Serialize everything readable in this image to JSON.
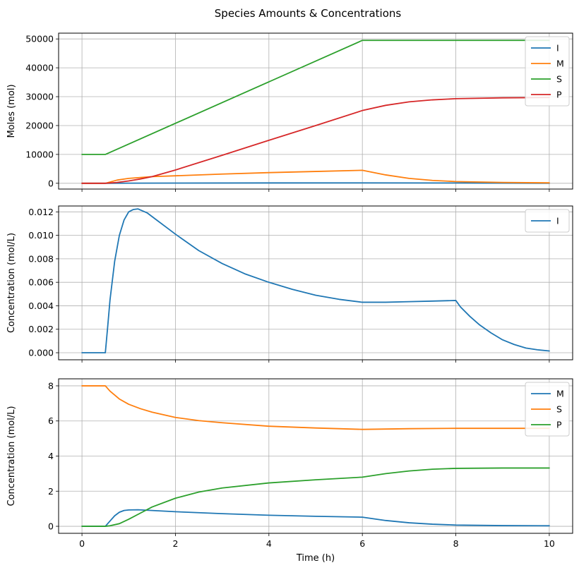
{
  "figure_title": "Species Amounts & Concentrations",
  "chart_data": [
    {
      "type": "line",
      "title": "",
      "xlabel": "",
      "ylabel": "Moles (mol)",
      "xlim": [
        -0.5,
        10.5
      ],
      "ylim": [
        -2000,
        52000
      ],
      "xticks": [
        0,
        2,
        4,
        6,
        8,
        10
      ],
      "xtick_labels": [],
      "yticks": [
        0,
        10000,
        20000,
        30000,
        40000,
        50000
      ],
      "ytick_labels": [
        "0",
        "10000",
        "20000",
        "30000",
        "40000",
        "50000"
      ],
      "grid": true,
      "legend": "top-right",
      "series": [
        {
          "name": "I",
          "color": "#1f77b4",
          "x": [
            0,
            0.5,
            1,
            2,
            4,
            6,
            8,
            10
          ],
          "y": [
            0,
            0,
            40,
            80,
            120,
            130,
            100,
            20
          ]
        },
        {
          "name": "M",
          "color": "#ff7f0e",
          "x": [
            0,
            0.5,
            0.75,
            1,
            1.5,
            2,
            3,
            4,
            5,
            6,
            6.5,
            7,
            7.5,
            8,
            9,
            10
          ],
          "y": [
            0,
            0,
            1100,
            1700,
            2300,
            2600,
            3200,
            3700,
            4100,
            4500,
            2900,
            1700,
            1000,
            600,
            300,
            150
          ]
        },
        {
          "name": "S",
          "color": "#2ca02c",
          "x": [
            0,
            0.5,
            6,
            10
          ],
          "y": [
            10000,
            10000,
            49500,
            49500
          ]
        },
        {
          "name": "P",
          "color": "#d62728",
          "x": [
            0,
            0.5,
            0.75,
            1,
            1.25,
            1.5,
            2,
            3,
            4,
            5,
            6,
            6.5,
            7,
            7.5,
            8,
            9,
            10
          ],
          "y": [
            0,
            0,
            300,
            800,
            1500,
            2300,
            4600,
            9700,
            14900,
            20000,
            25200,
            27000,
            28200,
            28900,
            29300,
            29600,
            29700
          ]
        }
      ]
    },
    {
      "type": "line",
      "title": "",
      "xlabel": "",
      "ylabel": "Concentration (mol/L)",
      "xlim": [
        -0.5,
        10.5
      ],
      "ylim": [
        -0.0006,
        0.0125
      ],
      "xticks": [
        0,
        2,
        4,
        6,
        8,
        10
      ],
      "xtick_labels": [],
      "yticks": [
        0,
        0.002,
        0.004,
        0.006,
        0.008,
        0.01,
        0.012
      ],
      "ytick_labels": [
        "0.000",
        "0.002",
        "0.004",
        "0.006",
        "0.008",
        "0.010",
        "0.012"
      ],
      "grid": true,
      "legend": "top-right",
      "series": [
        {
          "name": "I",
          "color": "#1f77b4",
          "x": [
            0,
            0.5,
            0.55,
            0.6,
            0.7,
            0.8,
            0.9,
            1.0,
            1.1,
            1.2,
            1.4,
            1.6,
            1.8,
            2.0,
            2.5,
            3.0,
            3.5,
            4.0,
            4.5,
            5.0,
            5.5,
            6.0,
            6.5,
            7.0,
            7.5,
            8.0,
            8.1,
            8.3,
            8.5,
            8.75,
            9.0,
            9.25,
            9.5,
            9.75,
            10.0
          ],
          "y": [
            0,
            0,
            0.0022,
            0.0045,
            0.0078,
            0.01,
            0.0113,
            0.012,
            0.0122,
            0.01225,
            0.0119,
            0.0113,
            0.0107,
            0.0101,
            0.0087,
            0.0076,
            0.0067,
            0.006,
            0.0054,
            0.0049,
            0.00455,
            0.0043,
            0.0043,
            0.00435,
            0.0044,
            0.00445,
            0.0039,
            0.0031,
            0.0024,
            0.0017,
            0.0011,
            0.0007,
            0.0004,
            0.00025,
            0.00015
          ]
        }
      ]
    },
    {
      "type": "line",
      "title": "",
      "xlabel": "Time (h)",
      "ylabel": "Concentration (mol/L)",
      "xlim": [
        -0.5,
        10.5
      ],
      "ylim": [
        -0.4,
        8.4
      ],
      "xticks": [
        0,
        2,
        4,
        6,
        8,
        10
      ],
      "xtick_labels": [
        "0",
        "2",
        "4",
        "6",
        "8",
        "10"
      ],
      "yticks": [
        0,
        2,
        4,
        6,
        8
      ],
      "ytick_labels": [
        "0",
        "2",
        "4",
        "6",
        "8"
      ],
      "grid": true,
      "legend": "top-right",
      "series": [
        {
          "name": "M",
          "color": "#1f77b4",
          "x": [
            0,
            0.5,
            0.6,
            0.7,
            0.8,
            0.9,
            1.0,
            1.2,
            1.5,
            2,
            3,
            4,
            5,
            6,
            6.5,
            7,
            7.5,
            8,
            9,
            10
          ],
          "y": [
            0,
            0,
            0.3,
            0.6,
            0.8,
            0.9,
            0.93,
            0.94,
            0.9,
            0.83,
            0.72,
            0.63,
            0.57,
            0.52,
            0.33,
            0.2,
            0.12,
            0.07,
            0.04,
            0.03
          ]
        },
        {
          "name": "S",
          "color": "#ff7f0e",
          "x": [
            0,
            0.5,
            0.6,
            0.8,
            1.0,
            1.25,
            1.5,
            2,
            2.5,
            3,
            4,
            5,
            6,
            7,
            8,
            9,
            10
          ],
          "y": [
            8,
            8,
            7.7,
            7.25,
            6.95,
            6.7,
            6.5,
            6.2,
            6.02,
            5.9,
            5.7,
            5.6,
            5.52,
            5.56,
            5.58,
            5.58,
            5.58
          ]
        },
        {
          "name": "P",
          "color": "#2ca02c",
          "x": [
            0,
            0.5,
            0.6,
            0.8,
            1.0,
            1.25,
            1.5,
            2,
            2.5,
            3,
            4,
            5,
            6,
            6.5,
            7,
            7.5,
            8,
            9,
            10
          ],
          "y": [
            0,
            0,
            0.03,
            0.15,
            0.4,
            0.75,
            1.1,
            1.6,
            1.95,
            2.18,
            2.47,
            2.65,
            2.8,
            3.0,
            3.15,
            3.25,
            3.3,
            3.32,
            3.32
          ]
        }
      ]
    }
  ]
}
